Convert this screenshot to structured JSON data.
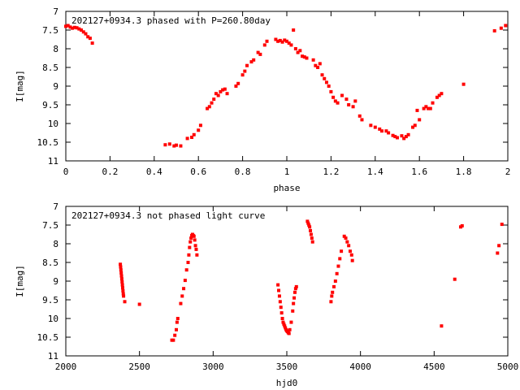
{
  "colors": {
    "points": "#ff0000",
    "frame": "#000000",
    "background": "#ffffff"
  },
  "chart_data": [
    {
      "type": "scatter",
      "title": "202127+0934.3 phased with P=260.80day",
      "xlabel": "phase",
      "ylabel": "I[mag]",
      "xlim": [
        0,
        2
      ],
      "ylim": [
        7,
        11
      ],
      "y_inverted": true,
      "xticks": [
        0,
        0.2,
        0.4,
        0.6,
        0.8,
        1,
        1.2,
        1.4,
        1.6,
        1.8,
        2
      ],
      "xtick_labels": [
        "0",
        "0.2",
        "0.4",
        "0.6",
        "0.8",
        "1",
        "1.2",
        "1.4",
        "1.6",
        "1.8",
        "2"
      ],
      "yticks": [
        7,
        7.5,
        8,
        8.5,
        9,
        9.5,
        10,
        10.5,
        11
      ],
      "ytick_labels": [
        "7",
        "7.5",
        "8",
        "8.5",
        "9",
        "9.5",
        "10",
        "10.5",
        "11"
      ],
      "series": [
        {
          "points": [
            [
              0.0,
              7.4
            ],
            [
              0.01,
              7.38
            ],
            [
              0.02,
              7.42
            ],
            [
              0.03,
              7.45
            ],
            [
              0.04,
              7.43
            ],
            [
              0.05,
              7.44
            ],
            [
              0.06,
              7.47
            ],
            [
              0.07,
              7.5
            ],
            [
              0.08,
              7.55
            ],
            [
              0.09,
              7.6
            ],
            [
              0.1,
              7.68
            ],
            [
              0.11,
              7.72
            ],
            [
              0.12,
              7.85
            ],
            [
              0.45,
              10.57
            ],
            [
              0.47,
              10.55
            ],
            [
              0.49,
              10.6
            ],
            [
              0.5,
              10.58
            ],
            [
              0.52,
              10.6
            ],
            [
              0.55,
              10.4
            ],
            [
              0.57,
              10.37
            ],
            [
              0.58,
              10.3
            ],
            [
              0.6,
              10.18
            ],
            [
              0.61,
              10.05
            ],
            [
              0.64,
              9.6
            ],
            [
              0.65,
              9.55
            ],
            [
              0.66,
              9.45
            ],
            [
              0.67,
              9.35
            ],
            [
              0.68,
              9.2
            ],
            [
              0.69,
              9.25
            ],
            [
              0.7,
              9.15
            ],
            [
              0.71,
              9.1
            ],
            [
              0.72,
              9.08
            ],
            [
              0.73,
              9.2
            ],
            [
              0.77,
              9.0
            ],
            [
              0.78,
              8.93
            ],
            [
              0.8,
              8.7
            ],
            [
              0.81,
              8.6
            ],
            [
              0.82,
              8.45
            ],
            [
              0.84,
              8.35
            ],
            [
              0.85,
              8.3
            ],
            [
              0.87,
              8.1
            ],
            [
              0.88,
              8.15
            ],
            [
              0.9,
              7.9
            ],
            [
              0.91,
              7.8
            ],
            [
              0.95,
              7.75
            ],
            [
              0.96,
              7.8
            ],
            [
              0.97,
              7.78
            ],
            [
              0.98,
              7.82
            ],
            [
              0.99,
              7.77
            ],
            [
              1.0,
              7.8
            ],
            [
              1.01,
              7.85
            ],
            [
              1.02,
              7.9
            ],
            [
              1.03,
              7.5
            ],
            [
              1.04,
              8.0
            ],
            [
              1.05,
              8.1
            ],
            [
              1.06,
              8.05
            ],
            [
              1.07,
              8.2
            ],
            [
              1.08,
              8.22
            ],
            [
              1.09,
              8.25
            ],
            [
              1.12,
              8.3
            ],
            [
              1.13,
              8.45
            ],
            [
              1.14,
              8.5
            ],
            [
              1.15,
              8.4
            ],
            [
              1.16,
              8.7
            ],
            [
              1.17,
              8.8
            ],
            [
              1.18,
              8.9
            ],
            [
              1.19,
              9.0
            ],
            [
              1.2,
              9.15
            ],
            [
              1.21,
              9.3
            ],
            [
              1.22,
              9.4
            ],
            [
              1.23,
              9.45
            ],
            [
              1.25,
              9.25
            ],
            [
              1.27,
              9.35
            ],
            [
              1.28,
              9.5
            ],
            [
              1.3,
              9.55
            ],
            [
              1.31,
              9.4
            ],
            [
              1.33,
              9.8
            ],
            [
              1.34,
              9.9
            ],
            [
              1.38,
              10.05
            ],
            [
              1.4,
              10.1
            ],
            [
              1.42,
              10.15
            ],
            [
              1.43,
              10.2
            ],
            [
              1.45,
              10.2
            ],
            [
              1.46,
              10.25
            ],
            [
              1.48,
              10.32
            ],
            [
              1.49,
              10.35
            ],
            [
              1.5,
              10.38
            ],
            [
              1.52,
              10.33
            ],
            [
              1.53,
              10.4
            ],
            [
              1.54,
              10.35
            ],
            [
              1.55,
              10.3
            ],
            [
              1.57,
              10.1
            ],
            [
              1.58,
              10.05
            ],
            [
              1.59,
              9.65
            ],
            [
              1.6,
              9.9
            ],
            [
              1.62,
              9.6
            ],
            [
              1.63,
              9.55
            ],
            [
              1.64,
              9.6
            ],
            [
              1.65,
              9.6
            ],
            [
              1.66,
              9.45
            ],
            [
              1.68,
              9.3
            ],
            [
              1.69,
              9.25
            ],
            [
              1.7,
              9.2
            ],
            [
              1.8,
              8.95
            ],
            [
              1.94,
              7.52
            ],
            [
              1.97,
              7.45
            ],
            [
              1.99,
              7.38
            ]
          ]
        }
      ]
    },
    {
      "type": "scatter",
      "title": "202127+0934.3 not phased light curve",
      "xlabel": "hjd0",
      "ylabel": "I[mag]",
      "xlim": [
        2000,
        5000
      ],
      "ylim": [
        7,
        11
      ],
      "y_inverted": true,
      "xticks": [
        2000,
        2500,
        3000,
        3500,
        4000,
        4500,
        5000
      ],
      "xtick_labels": [
        "2000",
        "2500",
        "3000",
        "3500",
        "4000",
        "4500",
        "5000"
      ],
      "yticks": [
        7,
        7.5,
        8,
        8.5,
        9,
        9.5,
        10,
        10.5,
        11
      ],
      "ytick_labels": [
        "7",
        "7.5",
        "8",
        "8.5",
        "9",
        "9.5",
        "10",
        "10.5",
        "11"
      ],
      "series": [
        {
          "points": [
            [
              2370,
              8.55
            ],
            [
              2372,
              8.62
            ],
            [
              2374,
              8.7
            ],
            [
              2376,
              8.78
            ],
            [
              2378,
              8.86
            ],
            [
              2380,
              8.94
            ],
            [
              2382,
              9.02
            ],
            [
              2384,
              9.1
            ],
            [
              2386,
              9.18
            ],
            [
              2388,
              9.26
            ],
            [
              2390,
              9.34
            ],
            [
              2392,
              9.4
            ],
            [
              2400,
              9.55
            ],
            [
              2500,
              9.62
            ],
            [
              2720,
              10.58
            ],
            [
              2730,
              10.58
            ],
            [
              2740,
              10.45
            ],
            [
              2750,
              10.3
            ],
            [
              2755,
              10.1
            ],
            [
              2760,
              10.0
            ],
            [
              2780,
              9.6
            ],
            [
              2790,
              9.4
            ],
            [
              2800,
              9.2
            ],
            [
              2810,
              8.98
            ],
            [
              2820,
              8.7
            ],
            [
              2830,
              8.5
            ],
            [
              2835,
              8.3
            ],
            [
              2840,
              8.1
            ],
            [
              2845,
              7.95
            ],
            [
              2850,
              7.85
            ],
            [
              2855,
              7.78
            ],
            [
              2860,
              7.75
            ],
            [
              2865,
              7.78
            ],
            [
              2870,
              7.8
            ],
            [
              2875,
              7.9
            ],
            [
              2880,
              8.05
            ],
            [
              2885,
              8.15
            ],
            [
              2890,
              8.3
            ],
            [
              3440,
              9.1
            ],
            [
              3445,
              9.25
            ],
            [
              3450,
              9.4
            ],
            [
              3455,
              9.55
            ],
            [
              3460,
              9.7
            ],
            [
              3465,
              9.85
            ],
            [
              3470,
              10.0
            ],
            [
              3475,
              10.1
            ],
            [
              3480,
              10.15
            ],
            [
              3485,
              10.2
            ],
            [
              3490,
              10.25
            ],
            [
              3495,
              10.3
            ],
            [
              3500,
              10.33
            ],
            [
              3505,
              10.35
            ],
            [
              3510,
              10.38
            ],
            [
              3515,
              10.4
            ],
            [
              3520,
              10.3
            ],
            [
              3530,
              10.1
            ],
            [
              3540,
              9.8
            ],
            [
              3545,
              9.6
            ],
            [
              3550,
              9.45
            ],
            [
              3555,
              9.3
            ],
            [
              3560,
              9.2
            ],
            [
              3565,
              9.15
            ],
            [
              3640,
              7.4
            ],
            [
              3645,
              7.45
            ],
            [
              3650,
              7.5
            ],
            [
              3655,
              7.55
            ],
            [
              3660,
              7.65
            ],
            [
              3665,
              7.75
            ],
            [
              3670,
              7.85
            ],
            [
              3675,
              7.95
            ],
            [
              3800,
              9.55
            ],
            [
              3805,
              9.4
            ],
            [
              3810,
              9.3
            ],
            [
              3820,
              9.15
            ],
            [
              3830,
              9.0
            ],
            [
              3840,
              8.8
            ],
            [
              3850,
              8.6
            ],
            [
              3860,
              8.4
            ],
            [
              3870,
              8.2
            ],
            [
              3890,
              7.8
            ],
            [
              3900,
              7.85
            ],
            [
              3910,
              7.95
            ],
            [
              3920,
              8.05
            ],
            [
              3930,
              8.2
            ],
            [
              3940,
              8.3
            ],
            [
              3945,
              8.45
            ],
            [
              4550,
              10.2
            ],
            [
              4640,
              8.95
            ],
            [
              4680,
              7.55
            ],
            [
              4690,
              7.52
            ],
            [
              4930,
              8.25
            ],
            [
              4940,
              8.05
            ],
            [
              4960,
              7.48
            ]
          ]
        }
      ]
    }
  ]
}
